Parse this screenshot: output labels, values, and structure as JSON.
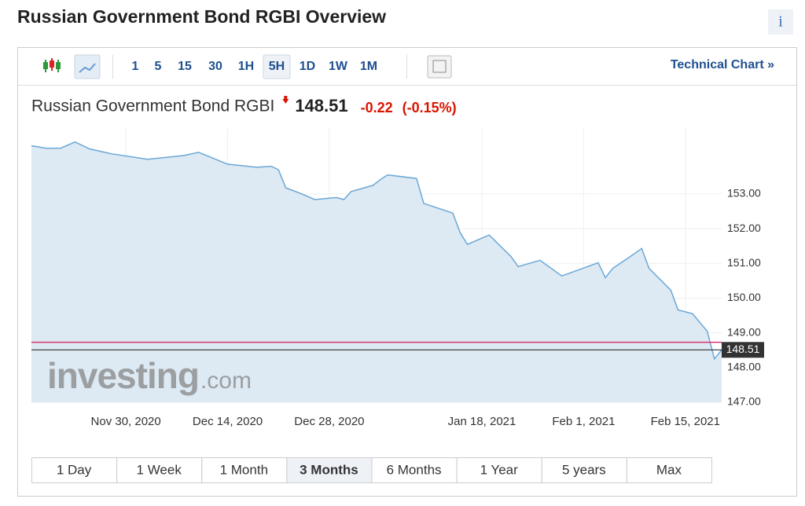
{
  "header": {
    "title": "Russian Government Bond RGBI Overview",
    "info": "i"
  },
  "toolbar": {
    "intervals": [
      "1",
      "5",
      "15",
      "30",
      "1H",
      "5H",
      "1D",
      "1W",
      "1M"
    ],
    "selected": "5H",
    "link": "Technical Chart »"
  },
  "quote": {
    "name": "Russian Government Bond RGBI",
    "price": "148.51",
    "change": "-0.22",
    "change_percent": "(-0.15%)"
  },
  "watermark": {
    "brand": "investing",
    "suffix": ".com"
  },
  "chart_data": {
    "type": "area",
    "color": "#6aa7d6",
    "fill": "#dde9f3",
    "grid": true,
    "x": [
      "2020-11-17",
      "2020-11-19",
      "2020-11-21",
      "2020-11-23",
      "2020-11-25",
      "2020-11-28",
      "2020-12-03",
      "2020-12-08",
      "2020-12-10",
      "2020-12-14",
      "2020-12-18",
      "2020-12-20",
      "2020-12-21",
      "2020-12-22",
      "2020-12-24",
      "2020-12-26",
      "2020-12-29",
      "2020-12-30",
      "2020-12-31",
      "2021-01-03",
      "2021-01-04",
      "2021-01-05",
      "2021-01-09",
      "2021-01-10",
      "2021-01-14",
      "2021-01-15",
      "2021-01-16",
      "2021-01-19",
      "2021-01-22",
      "2021-01-23",
      "2021-01-26",
      "2021-01-29",
      "2021-02-03",
      "2021-02-04",
      "2021-02-05",
      "2021-02-07",
      "2021-02-09",
      "2021-02-10",
      "2021-02-13",
      "2021-02-14",
      "2021-02-16",
      "2021-02-18",
      "2021-02-19",
      "2021-02-20"
    ],
    "values": [
      154.39,
      154.32,
      154.32,
      154.5,
      154.3,
      154.16,
      154.0,
      154.11,
      154.2,
      153.86,
      153.77,
      153.8,
      153.7,
      153.18,
      153.02,
      152.84,
      152.9,
      152.84,
      153.07,
      153.25,
      153.41,
      153.55,
      153.45,
      152.73,
      152.45,
      151.89,
      151.55,
      151.82,
      151.2,
      150.91,
      151.09,
      150.64,
      151.02,
      150.59,
      150.86,
      151.14,
      151.43,
      150.86,
      150.23,
      149.66,
      149.55,
      149.05,
      148.25,
      148.51
    ],
    "xlim": [
      "2020-11-17",
      "2021-02-20"
    ],
    "xticks": [
      {
        "value": "2020-11-30",
        "label": "Nov 30, 2020"
      },
      {
        "value": "2020-12-14",
        "label": "Dec 14, 2020"
      },
      {
        "value": "2020-12-28",
        "label": "Dec 28, 2020"
      },
      {
        "value": "2021-01-18",
        "label": "Jan 18, 2021"
      },
      {
        "value": "2021-02-01",
        "label": "Feb 1, 2021"
      },
      {
        "value": "2021-02-15",
        "label": "Feb 15, 2021"
      }
    ],
    "ylim": [
      147,
      154.9
    ],
    "yticks": [
      {
        "value": 147,
        "label": "147.00"
      },
      {
        "value": 148,
        "label": "148.00"
      },
      {
        "value": 149,
        "label": "149.00"
      },
      {
        "value": 150,
        "label": "150.00"
      },
      {
        "value": 151,
        "label": "151.00"
      },
      {
        "value": 152,
        "label": "152.00"
      },
      {
        "value": 153,
        "label": "153.00"
      }
    ],
    "reference_line": 148.73,
    "reference_color": "#d6336c"
  },
  "ranges": {
    "buttons": [
      "1 Day",
      "1 Week",
      "1 Month",
      "3 Months",
      "6 Months",
      "1 Year",
      "5 years",
      "Max"
    ],
    "selected": "3 Months"
  }
}
